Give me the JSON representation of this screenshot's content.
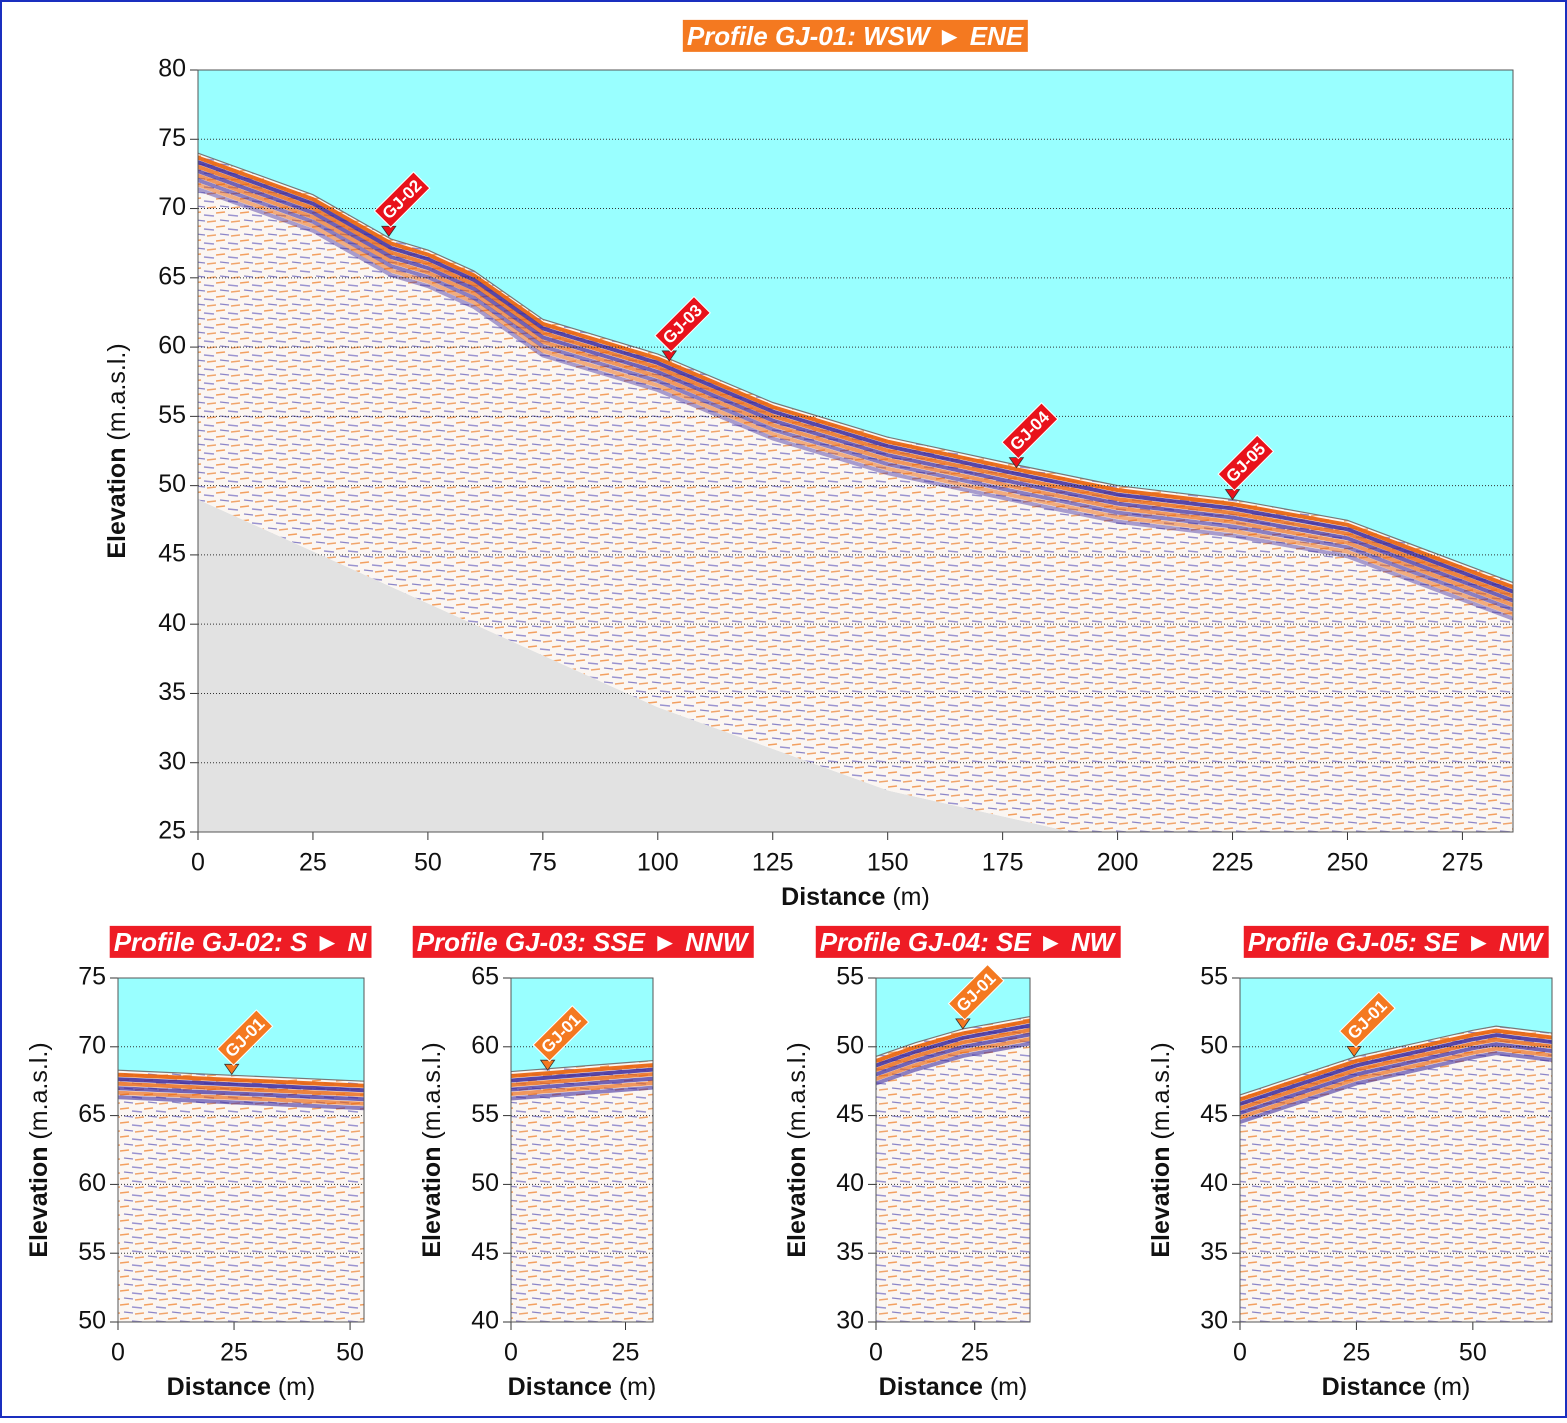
{
  "chart_data": [
    {
      "type": "profile",
      "title": "Profile GJ-01: WSW ► ENE",
      "title_color": "#f47920",
      "xlabel": "Distance",
      "xunit": "(m)",
      "ylabel": "Elevation",
      "yunit": "(m.a.s.l.)",
      "xlim": [
        0,
        286
      ],
      "xticks": [
        0,
        25,
        50,
        75,
        100,
        125,
        150,
        175,
        200,
        225,
        250,
        275
      ],
      "ylim": [
        25,
        80
      ],
      "yticks": [
        25,
        30,
        35,
        40,
        45,
        50,
        55,
        60,
        65,
        70,
        75,
        80
      ],
      "grid": true,
      "surface": {
        "x": [
          0,
          25,
          42,
          50,
          60,
          75,
          100,
          125,
          150,
          178,
          200,
          225,
          250,
          286
        ],
        "y": [
          74,
          71,
          67.8,
          67,
          65.5,
          62,
          59.5,
          56,
          53.5,
          51.5,
          50,
          49,
          47.5,
          43
        ]
      },
      "base": {
        "x": [
          0,
          40,
          100,
          150,
          190
        ],
        "y": [
          49,
          43,
          34,
          28,
          25
        ]
      },
      "marker_color": "#e8121b",
      "markers": [
        {
          "label": "GJ-02",
          "x": 41.5,
          "y": 68
        },
        {
          "label": "GJ-03",
          "x": 102.5,
          "y": 59
        },
        {
          "label": "GJ-04",
          "x": 178,
          "y": 51.3
        },
        {
          "label": "GJ-05",
          "x": 225,
          "y": 49
        }
      ]
    },
    {
      "type": "profile",
      "title": "Profile GJ-02: S ► N",
      "title_color": "#ee1c25",
      "xlabel": "Distance",
      "xunit": "(m)",
      "ylabel": "Elevation",
      "yunit": "(m.a.s.l.)",
      "xlim": [
        0,
        53
      ],
      "xticks": [
        0,
        25,
        50
      ],
      "ylim": [
        50,
        75
      ],
      "yticks": [
        50,
        55,
        60,
        65,
        70,
        75
      ],
      "grid": true,
      "surface": {
        "x": [
          0,
          53
        ],
        "y": [
          68.3,
          67.5
        ]
      },
      "marker_color": "#f47920",
      "markers": [
        {
          "label": "GJ-01",
          "x": 24.5,
          "y": 68
        }
      ]
    },
    {
      "type": "profile",
      "title": "Profile GJ-03: SSE ► NNW",
      "title_color": "#ee1c25",
      "xlabel": "Distance",
      "xunit": "(m)",
      "ylabel": "Elevation",
      "yunit": "(m.a.s.l.)",
      "xlim": [
        0,
        31
      ],
      "xticks": [
        0,
        25
      ],
      "ylim": [
        40,
        65
      ],
      "yticks": [
        40,
        45,
        50,
        55,
        60,
        65
      ],
      "grid": true,
      "surface": {
        "x": [
          0,
          31
        ],
        "y": [
          58.2,
          59
        ]
      },
      "marker_color": "#f47920",
      "markers": [
        {
          "label": "GJ-01",
          "x": 8,
          "y": 58.3
        }
      ]
    },
    {
      "type": "profile",
      "title": "Profile GJ-04: SE ► NW",
      "title_color": "#ee1c25",
      "xlabel": "Distance",
      "xunit": "(m)",
      "ylabel": "Elevation",
      "yunit": "(m.a.s.l.)",
      "xlim": [
        0,
        39
      ],
      "xticks": [
        0,
        25
      ],
      "ylim": [
        30,
        55
      ],
      "yticks": [
        30,
        35,
        40,
        45,
        50,
        55
      ],
      "grid": true,
      "surface": {
        "x": [
          0,
          10,
          22,
          39
        ],
        "y": [
          49.3,
          50.3,
          51.3,
          52.2
        ]
      },
      "marker_color": "#f47920",
      "markers": [
        {
          "label": "GJ-01",
          "x": 22,
          "y": 51.3
        }
      ]
    },
    {
      "type": "profile",
      "title": "Profile GJ-05: SE ► NW",
      "title_color": "#ee1c25",
      "xlabel": "Distance",
      "xunit": "(m)",
      "ylabel": "Elevation",
      "yunit": "(m.a.s.l.)",
      "xlim": [
        0,
        67
      ],
      "xticks": [
        0,
        25,
        50
      ],
      "ylim": [
        30,
        55
      ],
      "yticks": [
        30,
        35,
        40,
        45,
        50,
        55
      ],
      "grid": true,
      "surface": {
        "x": [
          0,
          25,
          50,
          55,
          67
        ],
        "y": [
          46.5,
          49.3,
          51.2,
          51.5,
          51
        ]
      },
      "marker_color": "#f47920",
      "markers": [
        {
          "label": "GJ-01",
          "x": 24.5,
          "y": 49.3
        }
      ]
    }
  ]
}
